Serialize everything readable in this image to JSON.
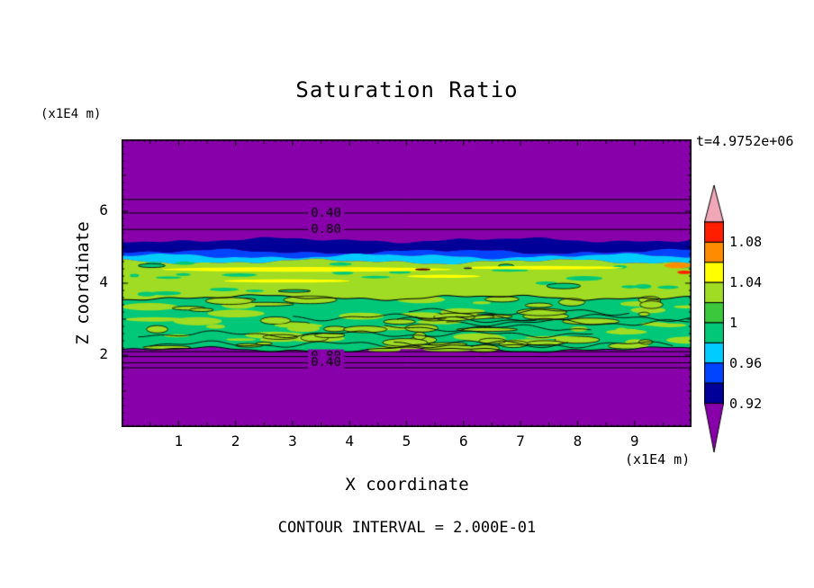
{
  "chart_data": {
    "type": "heatmap",
    "title": "Saturation Ratio",
    "time_annotation": "t=4.9752e+06",
    "xlabel": "X coordinate",
    "ylabel": "Z coordinate",
    "x_unit_label": "(x1E4 m)",
    "y_unit_label": "(x1E4 m)",
    "contour_note": "CONTOUR INTERVAL = 2.000E-01",
    "contour_interval": "2.000E-01",
    "xlim": [
      0,
      10
    ],
    "ylim": [
      0,
      8
    ],
    "x_ticks": [
      1,
      2,
      3,
      4,
      5,
      6,
      7,
      8,
      9
    ],
    "y_ticks": [
      2,
      4,
      6
    ],
    "grid": false,
    "colorbar": {
      "position": "right",
      "tick_labels": [
        "1.08",
        "1.04",
        "1",
        "0.96",
        "0.92"
      ],
      "segment_colors": [
        "#FF1E00",
        "#FF8C00",
        "#FFFF00",
        "#9FDC23",
        "#3CC83C",
        "#00C878",
        "#00CCFF",
        "#0044FF",
        "#000099"
      ],
      "over_color": "#F0A8B8",
      "under_color": "#8800AA"
    },
    "field": {
      "background_color": "#8800AA",
      "boundaries": [
        0.35,
        0.391,
        0.406,
        0.425,
        0.55,
        0.731
      ],
      "layer_colors": [
        "#000099",
        "#0044FF",
        "#00CCFF",
        "#9FDC23",
        "#00C878"
      ]
    },
    "highlight_patches": [
      {
        "x0": 0.07,
        "x1": 0.58,
        "y": 0.452,
        "h": 0.016,
        "color": "#FFFF00"
      },
      {
        "x0": 0.6,
        "x1": 0.88,
        "y": 0.446,
        "h": 0.012,
        "color": "#FFFF00"
      },
      {
        "x0": 0.18,
        "x1": 0.4,
        "y": 0.492,
        "h": 0.012,
        "color": "#FFFF00"
      },
      {
        "x0": 0.5,
        "x1": 0.63,
        "y": 0.476,
        "h": 0.011,
        "color": "#FFFF00"
      },
      {
        "x0": 0.952,
        "x1": 1.0,
        "y": 0.438,
        "h": 0.02,
        "color": "#FF8C00"
      },
      {
        "x0": 0.975,
        "x1": 1.0,
        "y": 0.462,
        "h": 0.012,
        "color": "#FF1E00"
      },
      {
        "x0": 0.515,
        "x1": 0.542,
        "y": 0.452,
        "h": 0.007,
        "color": "#5A0000"
      },
      {
        "x0": 0.6,
        "x1": 0.615,
        "y": 0.448,
        "h": 0.006,
        "color": "#303030"
      }
    ],
    "contour_lines": [
      {
        "y": 0.209,
        "label": ""
      },
      {
        "y": 0.256,
        "label": "0.40"
      },
      {
        "y": 0.313,
        "label": "0.80"
      },
      {
        "y": 0.738,
        "label": ""
      },
      {
        "y": 0.755,
        "label": "0.80"
      },
      {
        "y": 0.777,
        "label": "0.40"
      },
      {
        "y": 0.794,
        "label": ""
      }
    ],
    "contour_label_x": 0.332
  }
}
